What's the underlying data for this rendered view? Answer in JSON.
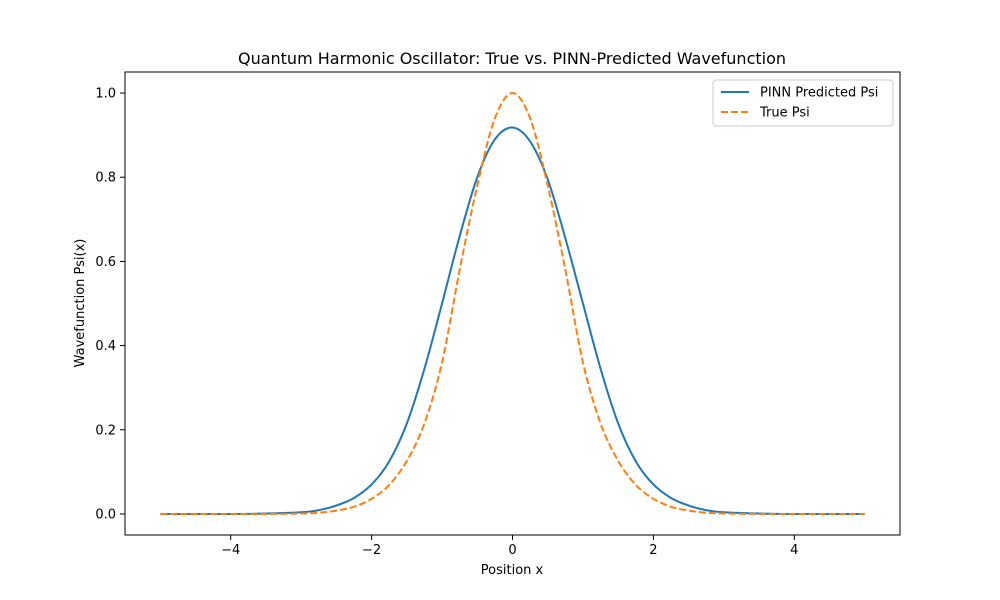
{
  "chart_data": {
    "type": "line",
    "title": "Quantum Harmonic Oscillator: True vs. PINN-Predicted Wavefunction",
    "xlabel": "Position x",
    "ylabel": "Wavefunction Psi(x)",
    "xlim": [
      -5.5,
      5.5
    ],
    "ylim": [
      -0.05,
      1.05
    ],
    "xticks": [
      -4,
      -2,
      0,
      2,
      4
    ],
    "xtick_labels": [
      "−4",
      "−2",
      "0",
      "2",
      "4"
    ],
    "yticks": [
      0.0,
      0.2,
      0.4,
      0.6,
      0.8,
      1.0
    ],
    "ytick_labels": [
      "0.0",
      "0.2",
      "0.4",
      "0.6",
      "0.8",
      "1.0"
    ],
    "grid": false,
    "legend_position": "top-right",
    "series": [
      {
        "name": "PINN Predicted Psi",
        "color": "#1f77b4",
        "style": "solid",
        "x": [
          -5,
          -4,
          -3.5,
          -3,
          -2.75,
          -2.5,
          -2.25,
          -2,
          -1.75,
          -1.5,
          -1.25,
          -1,
          -0.75,
          -0.5,
          -0.25,
          0,
          0.25,
          0.5,
          0.75,
          1,
          1.25,
          1.5,
          1.75,
          2,
          2.25,
          2.5,
          2.75,
          3,
          3.5,
          4,
          5
        ],
        "y": [
          0.0,
          0.0,
          0.001,
          0.004,
          0.009,
          0.02,
          0.038,
          0.07,
          0.125,
          0.215,
          0.345,
          0.5,
          0.66,
          0.8,
          0.89,
          0.918,
          0.885,
          0.795,
          0.655,
          0.5,
          0.345,
          0.215,
          0.125,
          0.07,
          0.038,
          0.02,
          0.009,
          0.004,
          0.001,
          0.0,
          0.0
        ]
      },
      {
        "name": "True Psi",
        "color": "#ff7f0e",
        "style": "dashed",
        "x": [
          -5,
          -4,
          -3.5,
          -3,
          -2.75,
          -2.5,
          -2.25,
          -2,
          -1.75,
          -1.5,
          -1.25,
          -1,
          -0.75,
          -0.5,
          -0.25,
          0,
          0.25,
          0.5,
          0.75,
          1,
          1.25,
          1.5,
          1.75,
          2,
          2.25,
          2.5,
          2.75,
          3,
          3.5,
          4,
          5
        ],
        "y": [
          0.0,
          0.0,
          0.0,
          0.001,
          0.003,
          0.008,
          0.017,
          0.036,
          0.069,
          0.126,
          0.215,
          0.36,
          0.58,
          0.78,
          0.94,
          1.0,
          0.94,
          0.78,
          0.58,
          0.36,
          0.215,
          0.126,
          0.069,
          0.036,
          0.017,
          0.008,
          0.003,
          0.001,
          0.0,
          0.0,
          0.0
        ]
      }
    ]
  }
}
